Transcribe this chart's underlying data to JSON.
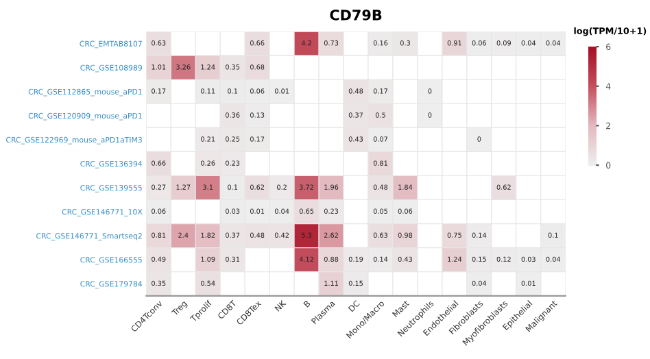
{
  "chart_data": {
    "type": "heatmap",
    "title": "CD79B",
    "clabel": "log(TPM/10+1)",
    "categories": [
      "CD4Tconv",
      "Treg",
      "Tprolif",
      "CD8T",
      "CD8Tex",
      "NK",
      "B",
      "Plasma",
      "DC",
      "Mono/Macro",
      "Mast",
      "Neutrophils",
      "Endothelial",
      "Fibroblasts",
      "Myofibroblasts",
      "Epithelial",
      "Malignant"
    ],
    "y_categories": [
      "CRC_EMTAB8107",
      "CRC_GSE108989",
      "CRC_GSE112865_mouse_aPD1",
      "CRC_GSE120909_mouse_aPD1",
      "CRC_GSE122969_mouse_aPD1aTIM3",
      "CRC_GSE136394",
      "CRC_GSE139555",
      "CRC_GSE146771_10X",
      "CRC_GSE146771_Smartseq2",
      "CRC_GSE166555",
      "CRC_GSE179784"
    ],
    "cells": [
      [
        0.63,
        null,
        null,
        null,
        0.66,
        null,
        4.2,
        0.73,
        null,
        0.16,
        0.3,
        null,
        0.91,
        0.06,
        0.09,
        0.04,
        0.04
      ],
      [
        1.01,
        3.26,
        1.24,
        0.35,
        0.68,
        null,
        null,
        null,
        null,
        null,
        null,
        null,
        null,
        null,
        null,
        null,
        null
      ],
      [
        0.17,
        null,
        0.11,
        0.1,
        0.06,
        0.01,
        null,
        null,
        0.48,
        0.17,
        null,
        0,
        null,
        null,
        null,
        null,
        null
      ],
      [
        null,
        null,
        null,
        0.36,
        0.13,
        null,
        null,
        null,
        0.37,
        0.5,
        null,
        0,
        null,
        null,
        null,
        null,
        null
      ],
      [
        null,
        null,
        0.21,
        0.25,
        0.17,
        null,
        null,
        null,
        0.43,
        0.07,
        null,
        null,
        null,
        0,
        null,
        null,
        null
      ],
      [
        0.66,
        null,
        0.26,
        0.23,
        null,
        null,
        null,
        null,
        null,
        0.81,
        null,
        null,
        null,
        null,
        null,
        null,
        null
      ],
      [
        0.27,
        1.27,
        3.1,
        0.1,
        0.62,
        0.2,
        3.72,
        1.96,
        null,
        0.48,
        1.84,
        null,
        null,
        null,
        0.62,
        null,
        null
      ],
      [
        0.06,
        null,
        null,
        0.03,
        0.01,
        0.04,
        0.65,
        0.23,
        null,
        0.05,
        0.06,
        null,
        null,
        null,
        null,
        null,
        null
      ],
      [
        0.81,
        2.4,
        1.82,
        0.37,
        0.48,
        0.42,
        5.3,
        2.62,
        null,
        0.63,
        0.98,
        null,
        0.75,
        0.14,
        null,
        null,
        0.1
      ],
      [
        0.49,
        null,
        1.09,
        0.31,
        null,
        null,
        4.12,
        0.88,
        0.19,
        0.14,
        0.43,
        null,
        1.24,
        0.15,
        0.12,
        0.03,
        0.04
      ],
      [
        0.35,
        null,
        0.54,
        null,
        null,
        null,
        null,
        1.11,
        0.15,
        null,
        null,
        null,
        null,
        0.04,
        null,
        0.01,
        null
      ]
    ],
    "clim": [
      0,
      6
    ],
    "cticks": [
      0,
      2,
      4,
      6
    ],
    "data_labels": true
  }
}
